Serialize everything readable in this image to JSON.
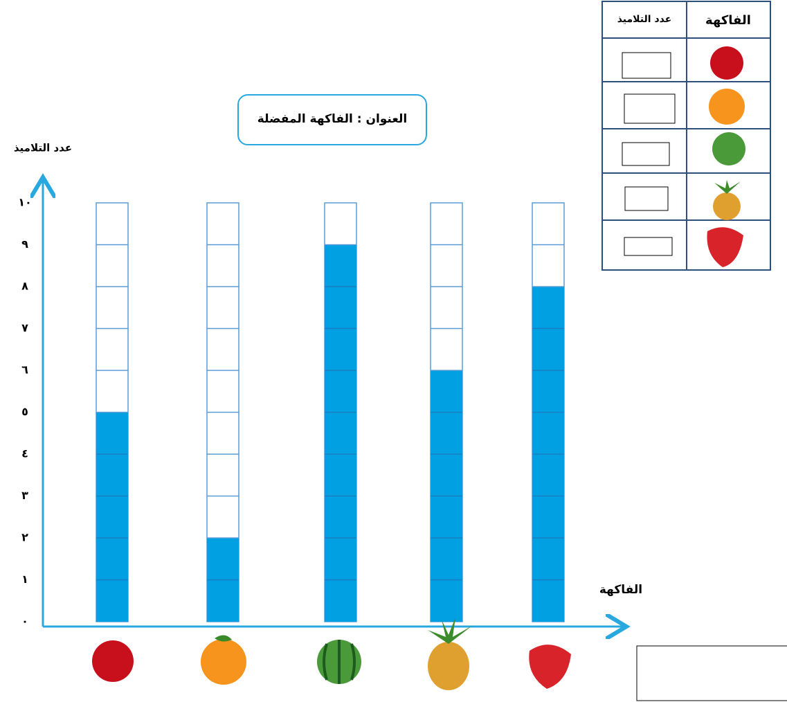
{
  "chart_data": {
    "type": "bar",
    "title": "العنوان :  الفاكهة المفضلة",
    "y_label": "عدد التلاميذ",
    "x_label": "الفاكهة",
    "categories": [
      null,
      null,
      null,
      null,
      null
    ],
    "values": [
      5,
      2,
      9,
      6,
      8
    ],
    "color": "#00a0e3",
    "ylim": [
      0,
      10
    ],
    "yticks": [
      {
        "value": 0,
        "label": "٠"
      },
      {
        "value": 1,
        "label": "١"
      },
      {
        "value": 2,
        "label": "٢"
      },
      {
        "value": 3,
        "label": "٣"
      },
      {
        "value": 4,
        "label": "٤"
      },
      {
        "value": 5,
        "label": "٥"
      },
      {
        "value": 6,
        "label": "٦"
      },
      {
        "value": 7,
        "label": "٧"
      },
      {
        "value": 8,
        "label": "٨"
      },
      {
        "value": 9,
        "label": "٩"
      },
      {
        "value": 10,
        "label": "١٠"
      }
    ]
  },
  "table": {
    "header": [
      "عدد التلاميذ",
      "الفاكهة"
    ]
  }
}
